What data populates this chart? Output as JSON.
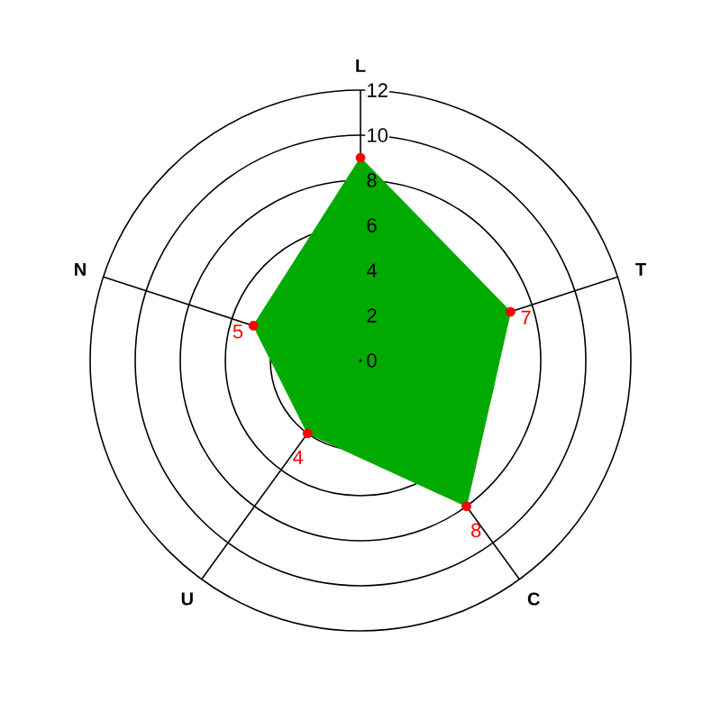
{
  "chart_data": {
    "type": "radar",
    "categories": [
      "L",
      "T",
      "C",
      "U",
      "N"
    ],
    "series": [
      {
        "color": "#00aa00",
        "values": [
          9,
          7,
          8,
          4,
          5
        ],
        "colors": [
          "#ff0000",
          "#ff0000",
          "#ff0000",
          "#ff0000",
          "#ff0000"
        ],
        "value_labels": [
          null,
          "7",
          "8",
          "4",
          "5"
        ]
      }
    ],
    "ylim": [
      0,
      12
    ],
    "yticks": [
      0,
      2,
      4,
      6,
      8,
      10,
      12
    ],
    "grid": true,
    "marker": "circle"
  }
}
